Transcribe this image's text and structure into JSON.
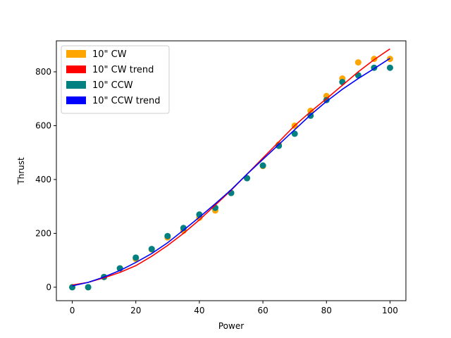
{
  "chart_data": {
    "type": "scatter",
    "xlabel": "Power",
    "ylabel": "Thrust",
    "xlim": [
      -5,
      105
    ],
    "ylim": [
      -50,
      915
    ],
    "xticks": [
      0,
      20,
      40,
      60,
      80,
      100
    ],
    "yticks": [
      0,
      200,
      400,
      600,
      800
    ],
    "grid": false,
    "legend_position": "upper-left",
    "legend": [
      {
        "label": "10\" CW",
        "color": "#ffa500"
      },
      {
        "label": "10\" CW trend",
        "color": "#ff0000"
      },
      {
        "label": "10\" CCW",
        "color": "#008080"
      },
      {
        "label": "10\" CCW trend",
        "color": "#0000ff"
      }
    ],
    "series": [
      {
        "name": "10\" CW",
        "kind": "scatter",
        "color": "#ffa500",
        "x": [
          0,
          5,
          10,
          15,
          20,
          25,
          30,
          35,
          40,
          45,
          50,
          55,
          60,
          65,
          70,
          75,
          80,
          85,
          90,
          95,
          100
        ],
        "y": [
          0,
          0,
          38,
          70,
          105,
          140,
          185,
          210,
          258,
          285,
          350,
          405,
          450,
          530,
          600,
          655,
          710,
          775,
          835,
          848,
          848
        ]
      },
      {
        "name": "10\" CCW",
        "kind": "scatter",
        "color": "#008080",
        "x": [
          0,
          5,
          10,
          15,
          20,
          25,
          30,
          35,
          40,
          45,
          50,
          55,
          60,
          65,
          70,
          75,
          80,
          85,
          90,
          95,
          100
        ],
        "y": [
          0,
          0,
          38,
          70,
          110,
          142,
          190,
          220,
          270,
          295,
          350,
          405,
          452,
          525,
          570,
          637,
          695,
          762,
          787,
          815,
          815
        ]
      },
      {
        "name": "10\" CW trend",
        "kind": "line",
        "color": "#ff0000",
        "x": [
          0,
          5,
          10,
          15,
          20,
          25,
          30,
          35,
          40,
          45,
          50,
          55,
          60,
          65,
          70,
          75,
          80,
          85,
          90,
          95,
          100
        ],
        "y": [
          8,
          18,
          35,
          55,
          80,
          115,
          155,
          200,
          250,
          305,
          360,
          420,
          480,
          540,
          600,
          652,
          700,
          750,
          800,
          845,
          885
        ]
      },
      {
        "name": "10\" CCW trend",
        "kind": "line",
        "color": "#0000ff",
        "x": [
          0,
          5,
          10,
          15,
          20,
          25,
          30,
          35,
          40,
          45,
          50,
          55,
          60,
          65,
          70,
          75,
          80,
          85,
          90,
          95,
          100
        ],
        "y": [
          5,
          18,
          38,
          62,
          92,
          125,
          165,
          212,
          260,
          310,
          362,
          420,
          475,
          530,
          585,
          640,
          690,
          735,
          775,
          812,
          850
        ]
      }
    ]
  }
}
